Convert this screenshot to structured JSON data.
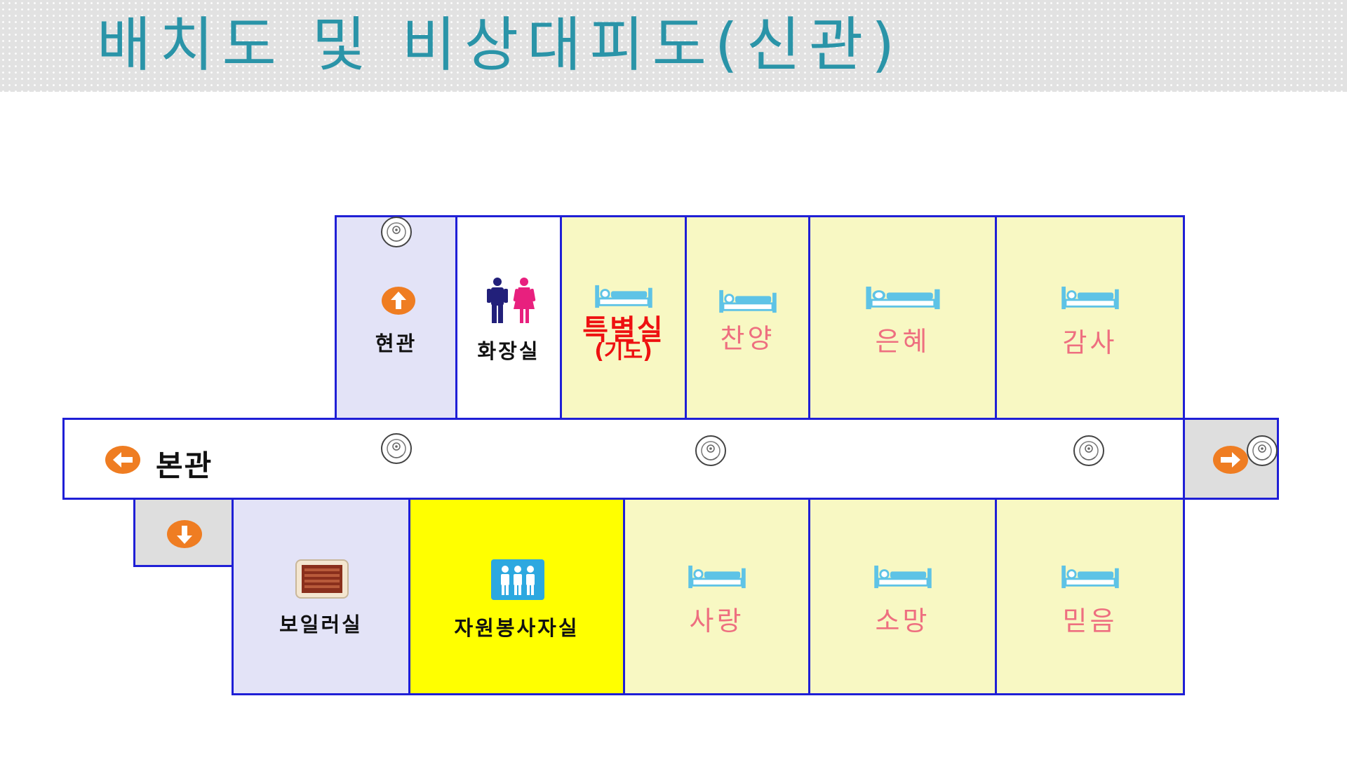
{
  "header": {
    "title": "배치도 및 비상대피도(신관)"
  },
  "rooms": {
    "entrance": {
      "label": "현관"
    },
    "restroom": {
      "label": "화장실"
    },
    "special": {
      "label": "특별실",
      "sub": "(기도)"
    },
    "chanyang": {
      "label": "찬양"
    },
    "eunhye": {
      "label": "은혜"
    },
    "gamsa": {
      "label": "감사"
    },
    "main_building": {
      "label": "본관"
    },
    "boiler": {
      "label": "보일러실"
    },
    "volunteer": {
      "label": "자원봉사자실"
    },
    "sarang": {
      "label": "사랑"
    },
    "somang": {
      "label": "소망"
    },
    "mideum": {
      "label": "믿음"
    }
  },
  "colors": {
    "wall": "#1f1fd6",
    "ward_fill": "#f8f8c3",
    "office_fill": "#e3e3f7",
    "volunteer_fill": "#ffff00",
    "exit_arrow": "#ef7d22",
    "title": "#2a94a8",
    "ward_label": "#ee6f80"
  },
  "icons": {
    "exit": "orange-circle-arrow-icon",
    "bed": "bed-icon",
    "smoke_detector": "smoke-detector-icon",
    "restroom": "restroom-icon",
    "people": "people-icon",
    "boiler": "boiler-icon"
  }
}
